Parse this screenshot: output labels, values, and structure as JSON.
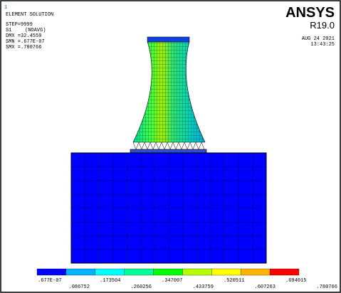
{
  "header": {
    "window_number": "1",
    "title": "ELEMENT SOLUTION",
    "step": "STEP=9999",
    "quantity": "S1",
    "averaging": "(NOAVG)",
    "dmx": "DMX =32.4559",
    "smn": "SMN =.677E-07",
    "smx": "SMX =.780766",
    "brand": "ANSYS",
    "release": "R19.0",
    "date": "AUG 24 2021",
    "time": "13:43:25"
  },
  "legend": {
    "colors": [
      "#0000ff",
      "#00b4ff",
      "#00ffff",
      "#00ff96",
      "#00ff00",
      "#b4ff00",
      "#ffff00",
      "#ffb400",
      "#ff0000"
    ],
    "labels": [
      ".677E-07",
      ".086752",
      ".173504",
      ".260256",
      ".347007",
      ".433759",
      ".520511",
      ".607263",
      ".694015",
      ".780766"
    ]
  }
}
